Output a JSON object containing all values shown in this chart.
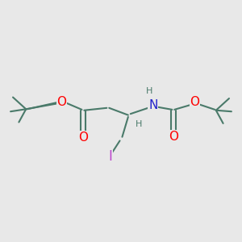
{
  "bg_color": "#e8e8e8",
  "bond_color": "#4a7a6a",
  "bond_width": 1.5,
  "atom_colors": {
    "O": "#ff0000",
    "N": "#2222cc",
    "I": "#bb44cc",
    "C": "#4a7a6a",
    "H": "#4a7a6a"
  },
  "font_size_atom": 10,
  "font_size_small": 8,
  "font_size_tbu": 8.5
}
